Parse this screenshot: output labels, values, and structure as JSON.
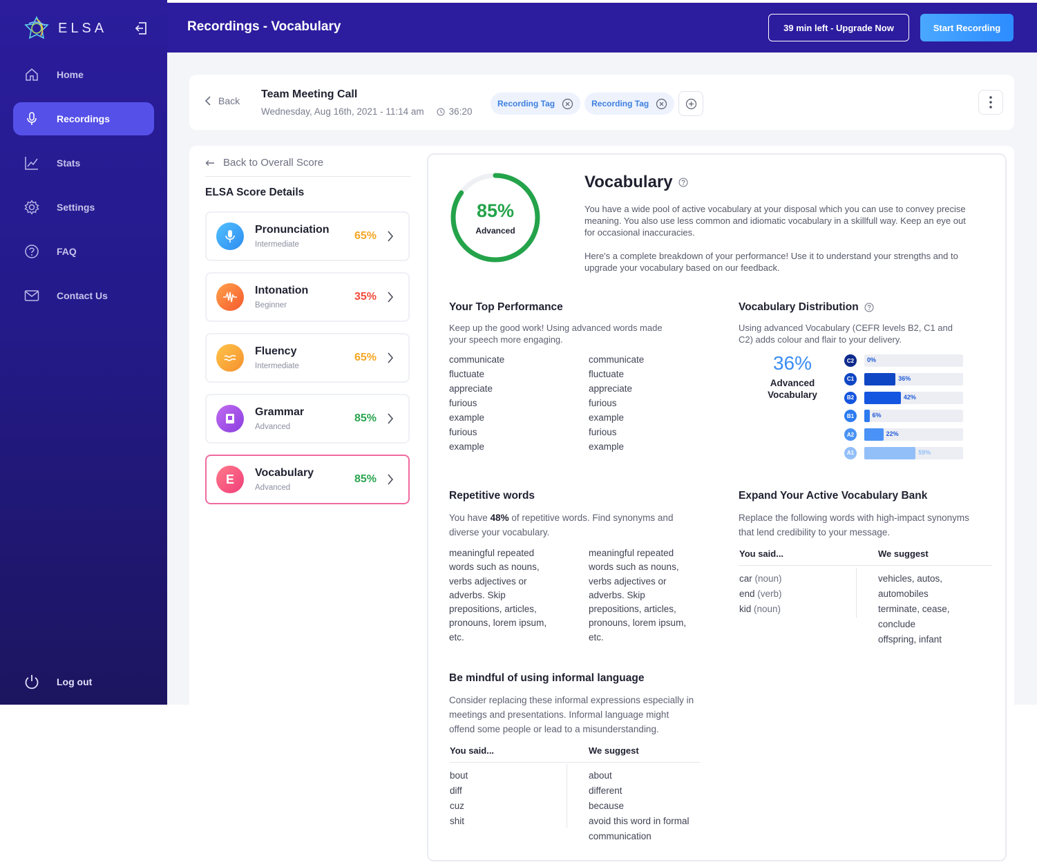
{
  "app": {
    "logo_text": "ELSA",
    "page_title": "Recordings - Vocabulary"
  },
  "sidebar": {
    "items": [
      {
        "label": "Home",
        "icon": "home-icon"
      },
      {
        "label": "Recordings",
        "icon": "microphone-icon",
        "active": true
      },
      {
        "label": "Stats",
        "icon": "chart-icon"
      },
      {
        "label": "Settings",
        "icon": "gear-icon"
      },
      {
        "label": "FAQ",
        "icon": "question-icon"
      },
      {
        "label": "Contact Us",
        "icon": "mail-icon"
      }
    ],
    "logout_label": "Log out"
  },
  "topbar": {
    "upgrade_label": "39 min left - Upgrade Now",
    "record_label": "Start Recording"
  },
  "meeting": {
    "back_label": "Back",
    "title": "Team Meeting Call",
    "datetime": "Wednesday, Aug 16th, 2021 - 11:14 am",
    "duration": "36:20",
    "tags": [
      "Recording Tag",
      "Recording Tag"
    ]
  },
  "score_panel": {
    "back_label": "Back to Overall Score",
    "heading": "ELSA Score Details",
    "items": [
      {
        "name": "Pronunciation",
        "level": "Intermediate",
        "pct": "65%",
        "pct_color": "#f5a623",
        "badge": "microphone-icon"
      },
      {
        "name": "Intonation",
        "level": "Beginner",
        "pct": "35%",
        "pct_color": "#f04a3a",
        "badge": "waveform-icon"
      },
      {
        "name": "Fluency",
        "level": "Intermediate",
        "pct": "65%",
        "pct_color": "#f5a623",
        "badge": "wave-icon"
      },
      {
        "name": "Grammar",
        "level": "Advanced",
        "pct": "85%",
        "pct_color": "#2aa44f",
        "badge": "book-icon"
      },
      {
        "name": "Vocabulary",
        "level": "Advanced",
        "pct": "85%",
        "pct_color": "#2aa44f",
        "badge": "E"
      }
    ]
  },
  "vocab": {
    "score_pct": "85%",
    "score_value": 0.85,
    "score_level": "Advanced",
    "title": "Vocabulary",
    "desc1": "You have a wide pool of active vocabulary at your disposal which you can use to convey precise meaning. You also use less common and idiomatic vocabulary in a skillfull way. Keep an eye out for occasional inaccuracies.",
    "desc2": "Here's a complete breakdown of your performance! Use it to understand your strengths and to upgrade your vocabulary based on our feedback."
  },
  "top_performance": {
    "title": "Your Top Performance",
    "desc": "Keep up the good work! Using advanced words made your speech more engaging.",
    "col1": [
      "communicate",
      "fluctuate",
      "appreciate",
      "furious",
      "example",
      "furious",
      "example"
    ],
    "col2": [
      "communicate",
      "fluctuate",
      "appreciate",
      "furious",
      "example",
      "furious",
      "example"
    ]
  },
  "distribution": {
    "title": "Vocabulary Distribution",
    "desc": "Using advanced Vocabulary (CEFR levels B2, C1 and C2) adds colour and flair to your delivery.",
    "big_pct": "36%",
    "big_label": "Advanced Vocabulary",
    "levels": [
      {
        "level": "C2",
        "pct": "0%",
        "value": 0,
        "color": "#0d2a8c"
      },
      {
        "level": "C1",
        "pct": "36%",
        "value": 36,
        "color": "#0f46c4"
      },
      {
        "level": "B2",
        "pct": "42%",
        "value": 42,
        "color": "#1556e0"
      },
      {
        "level": "B1",
        "pct": "6%",
        "value": 6,
        "color": "#2d7bf0"
      },
      {
        "level": "A2",
        "pct": "22%",
        "value": 22,
        "color": "#4a92f5"
      },
      {
        "level": "A1",
        "pct": "59%",
        "value": 59,
        "color": "#93bff9"
      }
    ]
  },
  "repetitive": {
    "title": "Repetitive words",
    "desc_prefix": "You have ",
    "desc_pct": "48%",
    "desc_suffix": " of repetitive words.  Find synonyms and diverse your vocabulary.",
    "col1": "meaningful repeated words such as nouns, verbs adjectives or adverbs. Skip prepositions, articles, pronouns, lorem ipsum, etc.",
    "col2": "meaningful repeated words such as nouns, verbs adjectives or adverbs. Skip prepositions, articles, pronouns, lorem ipsum, etc."
  },
  "expand": {
    "title": "Expand Your Active Vocabulary Bank",
    "desc": "Replace the following words with high-impact synonyms that lend credibility to your message.",
    "head_said": "You said...",
    "head_suggest": "We suggest",
    "said": [
      {
        "word": "car",
        "pos": " (noun)"
      },
      {
        "word": "end",
        "pos": " (verb)"
      },
      {
        "word": "kid",
        "pos": " (noun)"
      }
    ],
    "suggest": [
      "vehicles, autos, automobiles",
      "terminate, cease, conclude",
      "offspring, infant"
    ]
  },
  "informal": {
    "title": "Be mindful of using informal language",
    "desc": "Consider replacing these informal expressions especially in meetings and presentations. Informal language might offend some people or lead to a misunderstanding.",
    "head_said": "You said...",
    "head_suggest": "We suggest",
    "said": [
      "bout",
      "diff",
      "cuz",
      "shit"
    ],
    "suggest": [
      "about",
      "different",
      "because",
      "avoid this word in formal communication"
    ]
  },
  "colors": {
    "sidebar": "#2b1d9c",
    "topbar": "#2c1c9e",
    "active_nav": "#5550e8",
    "accent_blue": "#3a8cf4",
    "score_green": "#24a34a",
    "active_border": "#f06aa0"
  }
}
